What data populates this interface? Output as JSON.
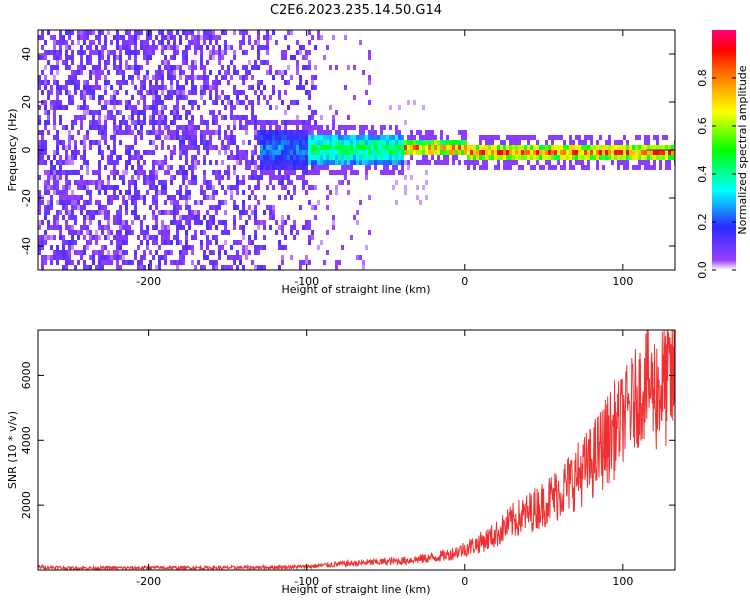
{
  "title": "C2E6.2023.235.14.50.G14",
  "chart_data": [
    {
      "type": "heatmap",
      "xlabel": "Height of straight line (km)",
      "ylabel": "Frequency (Hz)",
      "xlim": [
        -270,
        133
      ],
      "ylim": [
        -50,
        50
      ],
      "xticks": [
        -200,
        -100,
        0,
        100
      ],
      "yticks": [
        40,
        20,
        0,
        -20,
        -40
      ],
      "colorbar": {
        "label": "Normalized spectral amplitude",
        "range": [
          0.0,
          1.0
        ],
        "ticks": [
          "0.0",
          "0.2",
          "0.4",
          "0.6",
          "0.8"
        ],
        "tick_values": [
          0.0,
          0.2,
          0.4,
          0.6,
          0.8
        ],
        "colormap": [
          "#8000ff",
          "#0000ff",
          "#00ffff",
          "#00ff00",
          "#ffff00",
          "#ff8000",
          "#ff0000",
          "#ff0080"
        ]
      },
      "series": [
        {
          "x_range": [
            -270,
            -100
          ],
          "frequency_spread": [
            -50,
            50
          ],
          "amplitude": 0.05
        },
        {
          "x_range": [
            -130,
            -40
          ],
          "frequency_spread": [
            -10,
            8
          ],
          "amplitude": 0.35
        },
        {
          "x_range": [
            -40,
            133
          ],
          "frequency_spread": [
            -4,
            4
          ],
          "amplitude": 0.9
        }
      ],
      "grid": false
    },
    {
      "type": "line",
      "xlabel": "Height of straight line (km)",
      "ylabel": "SNR (10 * v/v)",
      "xlim": [
        -270,
        133
      ],
      "ylim": [
        0,
        7400
      ],
      "xticks": [
        -200,
        -100,
        0,
        100
      ],
      "yticks": [
        6000,
        4000,
        2000
      ],
      "color": "#f03030",
      "series": [
        {
          "x": [
            -270,
            -250,
            -200,
            -150,
            -100,
            -80,
            -60,
            -40,
            -20,
            -10,
            0,
            10,
            20,
            30,
            40,
            50,
            60,
            70,
            80,
            90,
            100,
            110,
            115,
            120,
            133
          ],
          "y": [
            100,
            60,
            70,
            70,
            100,
            180,
            230,
            280,
            380,
            480,
            650,
            850,
            1100,
            1500,
            1750,
            2050,
            2400,
            2850,
            3300,
            4000,
            4700,
            5400,
            5800,
            5500,
            5950
          ]
        }
      ],
      "grid": false
    }
  ]
}
